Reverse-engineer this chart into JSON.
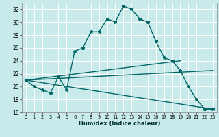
{
  "title": "",
  "xlabel": "Humidex (Indice chaleur)",
  "bg_color": "#c8eaea",
  "grid_color": "#ffffff",
  "line_color": "#006666",
  "xlim": [
    -0.5,
    23.5
  ],
  "ylim": [
    16,
    33
  ],
  "yticks": [
    16,
    18,
    20,
    22,
    24,
    26,
    28,
    30,
    32
  ],
  "xticks": [
    0,
    1,
    2,
    3,
    4,
    5,
    6,
    7,
    8,
    9,
    10,
    11,
    12,
    13,
    14,
    15,
    16,
    17,
    18,
    19,
    20,
    21,
    22,
    23
  ],
  "curve1_x": [
    0,
    1,
    2,
    3,
    4,
    5,
    6,
    7,
    8,
    9,
    10,
    11,
    12,
    13,
    14,
    15,
    16,
    17,
    18,
    19,
    20,
    21,
    22,
    23
  ],
  "curve1_y": [
    21.0,
    20.0,
    19.5,
    19.0,
    21.5,
    19.5,
    25.5,
    26.0,
    28.5,
    28.5,
    30.5,
    30.0,
    32.5,
    32.0,
    30.5,
    30.0,
    27.0,
    24.5,
    24.0,
    22.5,
    20.0,
    18.0,
    16.5,
    16.5
  ],
  "curve2_x": [
    0,
    19
  ],
  "curve2_y": [
    21.0,
    24.0
  ],
  "curve3_x": [
    0,
    23
  ],
  "curve3_y": [
    21.0,
    22.5
  ],
  "curve4_x": [
    0,
    23
  ],
  "curve4_y": [
    21.0,
    16.5
  ],
  "marker_size": 3.5,
  "linewidth": 1.0
}
